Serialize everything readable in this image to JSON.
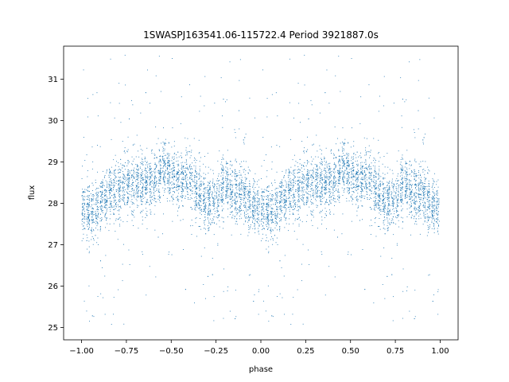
{
  "chart_data": {
    "type": "scatter",
    "title": "1SWASPJ163541.06-115722.4 Period 3921887.0s",
    "xlabel": "phase",
    "ylabel": "flux",
    "xlim": [
      -1.1,
      1.1
    ],
    "ylim": [
      24.7,
      31.8
    ],
    "xticks": [
      -1.0,
      -0.75,
      -0.5,
      -0.25,
      0.0,
      0.25,
      0.5,
      0.75,
      1.0
    ],
    "xtick_labels": [
      "−1.00",
      "−0.75",
      "−0.50",
      "−0.25",
      "0.00",
      "0.25",
      "0.50",
      "0.75",
      "1.00"
    ],
    "yticks": [
      25,
      26,
      27,
      28,
      29,
      30,
      31
    ],
    "ytick_labels": [
      "25",
      "26",
      "27",
      "28",
      "29",
      "30",
      "31"
    ],
    "grid": false,
    "legend": "none",
    "point_color": "#1f77b4",
    "phase_profile": {
      "phase": [
        0.0,
        0.05,
        0.1,
        0.15,
        0.2,
        0.25,
        0.3,
        0.35,
        0.4,
        0.45,
        0.5,
        0.55,
        0.6,
        0.65,
        0.7,
        0.75,
        0.8,
        0.85,
        0.9,
        0.95
      ],
      "flux": [
        27.9,
        27.7,
        28.0,
        28.2,
        28.3,
        28.4,
        28.5,
        28.4,
        28.5,
        28.9,
        28.7,
        28.5,
        28.6,
        28.3,
        28.0,
        28.1,
        28.5,
        28.2,
        28.3,
        27.9
      ]
    },
    "points_per_cycle": 3500,
    "scatter_sigma": 0.35
  }
}
